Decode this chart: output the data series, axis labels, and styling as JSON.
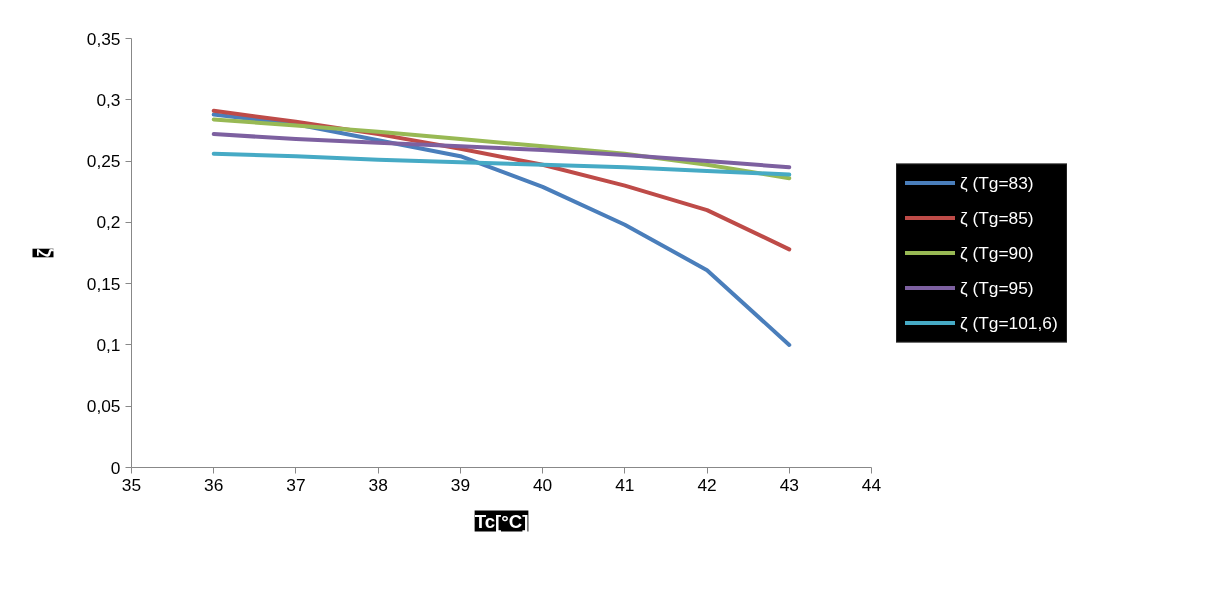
{
  "chart_data": {
    "type": "line",
    "xlabel": "Tc[°C]",
    "ylabel": "ζ",
    "x": [
      36,
      37,
      38,
      39,
      40,
      41,
      42,
      43
    ],
    "series": [
      {
        "name": "ζ (Tg=83)",
        "color": "#4a7ebb",
        "values": [
          0.288,
          0.28,
          0.267,
          0.254,
          0.229,
          0.198,
          0.161,
          0.1
        ]
      },
      {
        "name": "ζ (Tg=85)",
        "color": "#be4b48",
        "values": [
          0.291,
          0.282,
          0.272,
          0.26,
          0.247,
          0.23,
          0.21,
          0.178
        ]
      },
      {
        "name": "ζ (Tg=90)",
        "color": "#98b954",
        "values": [
          0.284,
          0.279,
          0.274,
          0.268,
          0.262,
          0.256,
          0.247,
          0.236
        ]
      },
      {
        "name": "ζ (Tg=95)",
        "color": "#7d60a0",
        "values": [
          0.272,
          0.268,
          0.265,
          0.262,
          0.259,
          0.255,
          0.25,
          0.245
        ]
      },
      {
        "name": "ζ (Tg=101,6)",
        "color": "#46aac5",
        "values": [
          0.256,
          0.254,
          0.251,
          0.249,
          0.247,
          0.245,
          0.242,
          0.239
        ]
      }
    ],
    "xlim": [
      35,
      44
    ],
    "xticks": [
      35,
      36,
      37,
      38,
      39,
      40,
      41,
      42,
      43,
      44
    ],
    "ylim": [
      0,
      0.35
    ],
    "yticks": [
      {
        "value": 0,
        "label": "0"
      },
      {
        "value": 0.05,
        "label": "0,05"
      },
      {
        "value": 0.1,
        "label": "0,1"
      },
      {
        "value": 0.15,
        "label": "0,15"
      },
      {
        "value": 0.2,
        "label": "0,2"
      },
      {
        "value": 0.25,
        "label": "0,25"
      },
      {
        "value": 0.3,
        "label": "0,3"
      },
      {
        "value": 0.35,
        "label": "0,35"
      }
    ],
    "grid": false,
    "legend": "right",
    "marker": "none",
    "line_style": "solid"
  }
}
